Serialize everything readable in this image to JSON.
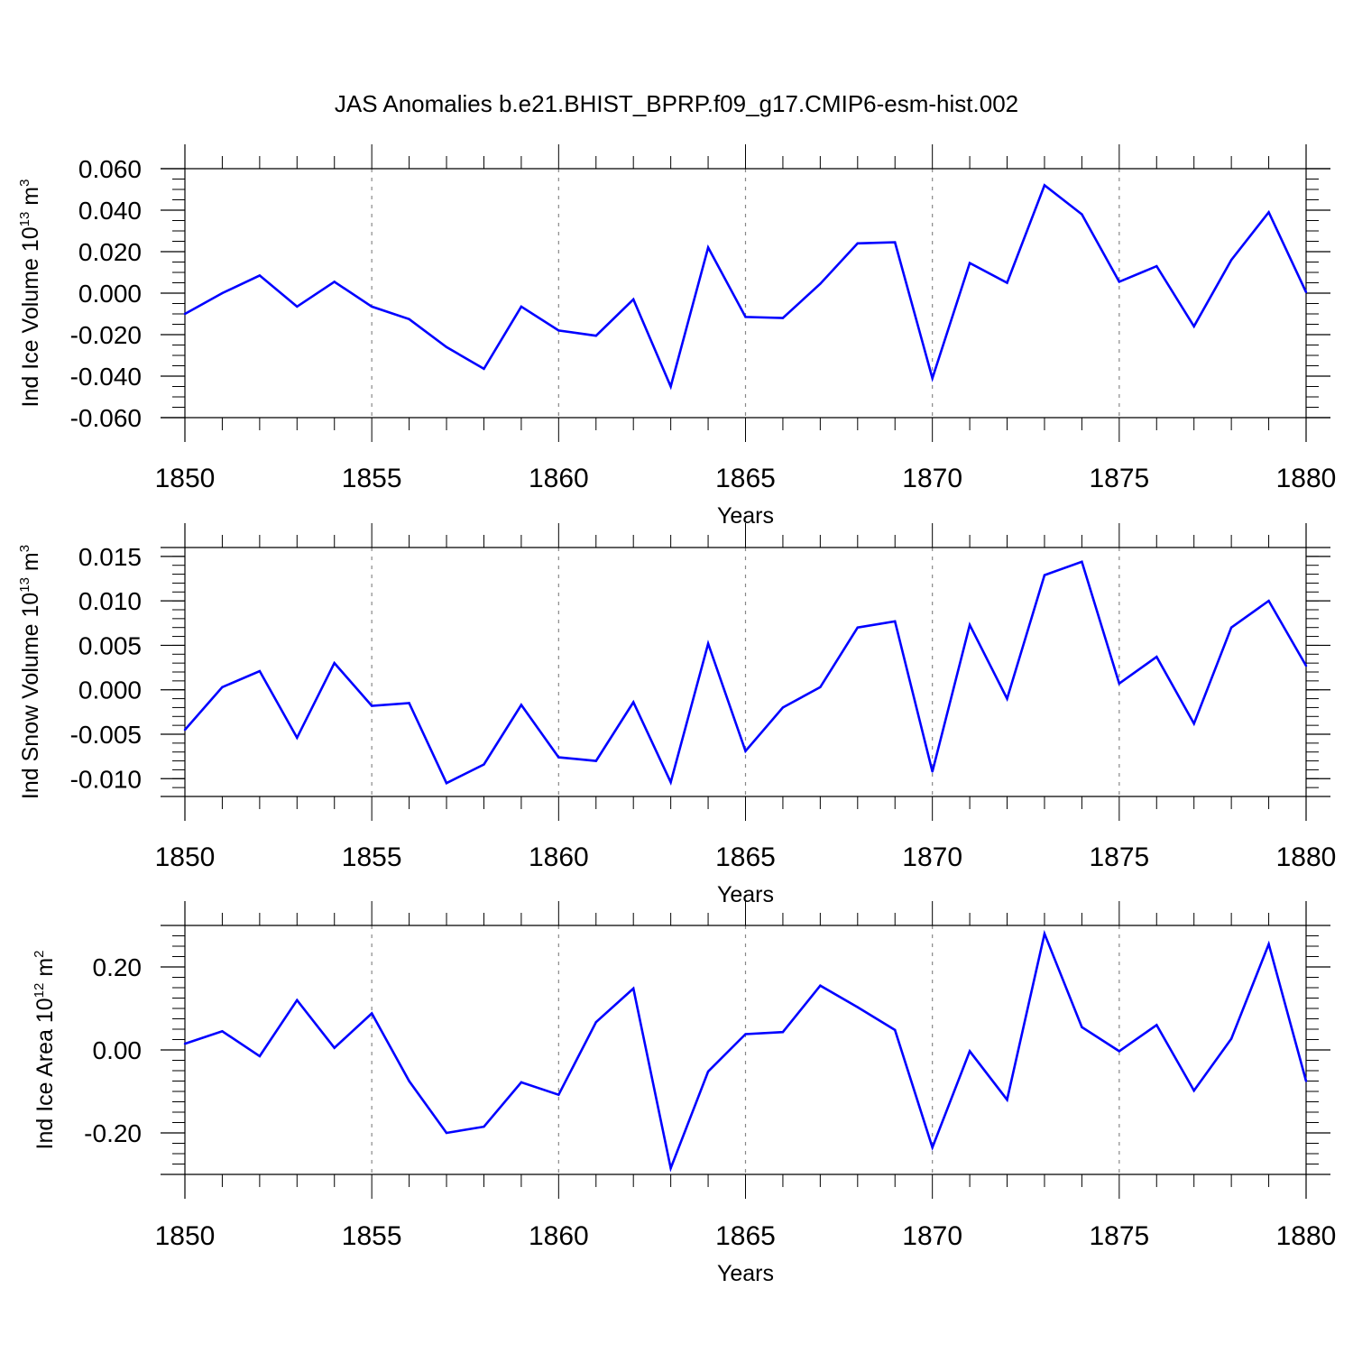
{
  "title": "JAS Anomalies b.e21.BHIST_BPRP.f09_g17.CMIP6-esm-hist.002",
  "chart_data": [
    {
      "type": "line",
      "ylabel": {
        "prefix": "Ind Ice Volume 10",
        "exp": "13",
        "unit": " m",
        "unit_exp": "3"
      },
      "xlabel": "Years",
      "xlim": [
        1850,
        1880
      ],
      "ylim": [
        -0.06,
        0.06
      ],
      "x_ticks": [
        "1850",
        "1855",
        "1860",
        "1865",
        "1870",
        "1875",
        "1880"
      ],
      "y_ticks": [
        "0.060",
        "0.040",
        "0.020",
        "0.000",
        "-0.020",
        "-0.040",
        "-0.060"
      ],
      "y_tick_values": [
        0.06,
        0.04,
        0.02,
        0.0,
        -0.02,
        -0.04,
        -0.06
      ],
      "grid": "vertical dashed at major x ticks",
      "series_color": "#0000ff",
      "x": [
        1850,
        1851,
        1852,
        1853,
        1854,
        1855,
        1856,
        1857,
        1858,
        1859,
        1860,
        1861,
        1862,
        1863,
        1864,
        1865,
        1866,
        1867,
        1868,
        1869,
        1870,
        1871,
        1872,
        1873,
        1874,
        1875,
        1876,
        1877,
        1878,
        1879,
        1880
      ],
      "values": [
        -0.01,
        0.0,
        0.0085,
        -0.0065,
        0.0055,
        -0.0065,
        -0.0125,
        -0.026,
        -0.0365,
        -0.0065,
        -0.018,
        -0.0205,
        -0.003,
        -0.045,
        0.022,
        -0.0115,
        -0.012,
        0.0045,
        0.024,
        0.0245,
        -0.041,
        0.0145,
        0.005,
        0.052,
        0.038,
        0.0055,
        0.013,
        -0.016,
        0.016,
        0.039,
        0.0005
      ]
    },
    {
      "type": "line",
      "ylabel": {
        "prefix": "Ind Snow Volume 10",
        "exp": "13",
        "unit": " m",
        "unit_exp": "3"
      },
      "xlabel": "Years",
      "xlim": [
        1850,
        1880
      ],
      "ylim": [
        -0.012,
        0.016
      ],
      "x_ticks": [
        "1850",
        "1855",
        "1860",
        "1865",
        "1870",
        "1875",
        "1880"
      ],
      "y_ticks": [
        "0.015",
        "0.010",
        "0.005",
        "0.000",
        "-0.005",
        "-0.010"
      ],
      "y_tick_values": [
        0.015,
        0.01,
        0.005,
        0.0,
        -0.005,
        -0.01
      ],
      "grid": "vertical dashed at major x ticks",
      "series_color": "#0000ff",
      "x": [
        1850,
        1851,
        1852,
        1853,
        1854,
        1855,
        1856,
        1857,
        1858,
        1859,
        1860,
        1861,
        1862,
        1863,
        1864,
        1865,
        1866,
        1867,
        1868,
        1869,
        1870,
        1871,
        1872,
        1873,
        1874,
        1875,
        1876,
        1877,
        1878,
        1879,
        1880
      ],
      "values": [
        -0.0045,
        0.0003,
        0.0021,
        -0.0054,
        0.003,
        -0.0018,
        -0.0015,
        -0.0105,
        -0.0084,
        -0.0017,
        -0.0076,
        -0.008,
        -0.0014,
        -0.0104,
        0.0052,
        -0.0069,
        -0.002,
        0.0003,
        0.007,
        0.0077,
        -0.0092,
        0.0073,
        -0.001,
        0.0129,
        0.0144,
        0.0007,
        0.0037,
        -0.0038,
        0.007,
        0.01,
        0.0027
      ]
    },
    {
      "type": "line",
      "ylabel": {
        "prefix": "Ind Ice Area 10",
        "exp": "12",
        "unit": " m",
        "unit_exp": "2"
      },
      "xlabel": "Years",
      "xlim": [
        1850,
        1880
      ],
      "ylim": [
        -0.3,
        0.3
      ],
      "x_ticks": [
        "1850",
        "1855",
        "1860",
        "1865",
        "1870",
        "1875",
        "1880"
      ],
      "y_ticks": [
        "0.20",
        "0.00",
        "-0.20"
      ],
      "y_tick_values": [
        0.2,
        0.0,
        -0.2
      ],
      "grid": "vertical dashed at major x ticks",
      "series_color": "#0000ff",
      "x": [
        1850,
        1851,
        1852,
        1853,
        1854,
        1855,
        1856,
        1857,
        1858,
        1859,
        1860,
        1861,
        1862,
        1863,
        1864,
        1865,
        1866,
        1867,
        1868,
        1869,
        1870,
        1871,
        1872,
        1873,
        1874,
        1875,
        1876,
        1877,
        1878,
        1879,
        1880
      ],
      "values": [
        0.015,
        0.045,
        -0.015,
        0.12,
        0.005,
        0.088,
        -0.075,
        -0.2,
        -0.185,
        -0.078,
        -0.108,
        0.067,
        0.148,
        -0.285,
        -0.052,
        0.038,
        0.043,
        0.155,
        0.103,
        0.048,
        -0.235,
        -0.003,
        -0.12,
        0.28,
        0.055,
        -0.003,
        0.06,
        -0.098,
        0.027,
        0.255,
        -0.075
      ]
    }
  ]
}
